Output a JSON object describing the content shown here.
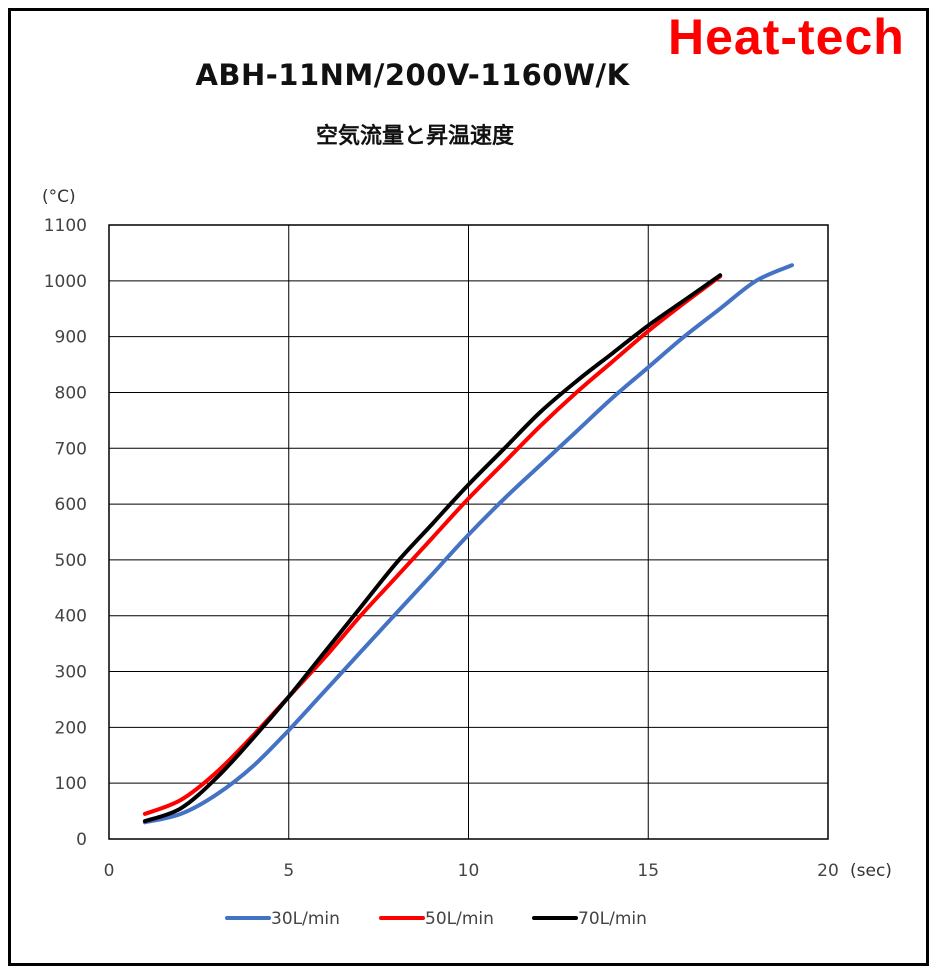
{
  "brand": {
    "text": "Heat-tech",
    "color": "#ff0000"
  },
  "chart_data": {
    "type": "line",
    "title": "ABH-11NM/200V-1160W/K",
    "subtitle": "空気流量と昇温速度",
    "xlabel": "(sec)",
    "ylabel": "(°C)",
    "xlim": [
      0,
      20
    ],
    "ylim": [
      0,
      1100
    ],
    "xticks": [
      0,
      5,
      10,
      15,
      20
    ],
    "yticks": [
      0,
      100,
      200,
      300,
      400,
      500,
      600,
      700,
      800,
      900,
      1000,
      1100
    ],
    "grid": true,
    "legend_position": "bottom",
    "series": [
      {
        "name": "30L/min",
        "color": "#4472c4",
        "x": [
          1,
          2,
          3,
          4,
          5,
          6,
          7,
          8,
          9,
          10,
          11,
          12,
          13,
          14,
          15,
          16,
          17,
          18,
          19
        ],
        "values": [
          30,
          45,
          80,
          130,
          195,
          265,
          335,
          405,
          475,
          545,
          610,
          670,
          730,
          790,
          845,
          900,
          950,
          1000,
          1028
        ]
      },
      {
        "name": "50L/min",
        "color": "#ff0000",
        "x": [
          1,
          2,
          3,
          4,
          5,
          6,
          7,
          8,
          9,
          10,
          11,
          12,
          13,
          14,
          15,
          16,
          17
        ],
        "values": [
          45,
          70,
          120,
          185,
          255,
          325,
          400,
          470,
          540,
          610,
          675,
          740,
          800,
          855,
          910,
          960,
          1008
        ]
      },
      {
        "name": "70L/min",
        "color": "#000000",
        "x": [
          1,
          2,
          3,
          4,
          5,
          6,
          7,
          8,
          9,
          10,
          11,
          12,
          13,
          14,
          15,
          16,
          17
        ],
        "values": [
          32,
          55,
          110,
          180,
          255,
          335,
          415,
          495,
          565,
          635,
          700,
          765,
          820,
          870,
          920,
          965,
          1010
        ]
      }
    ]
  }
}
